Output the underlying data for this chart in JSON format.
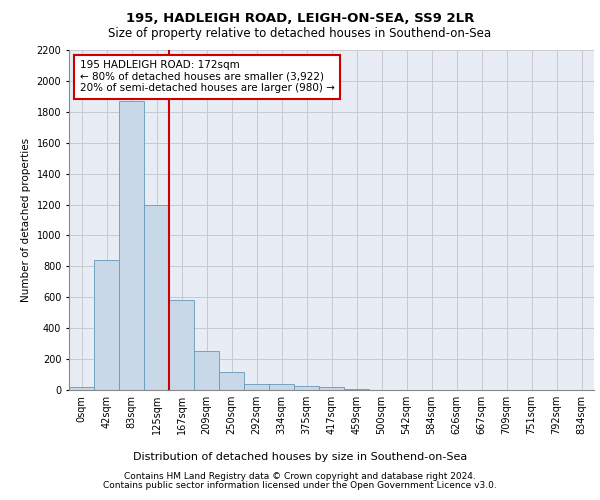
{
  "title1": "195, HADLEIGH ROAD, LEIGH-ON-SEA, SS9 2LR",
  "title2": "Size of property relative to detached houses in Southend-on-Sea",
  "xlabel": "Distribution of detached houses by size in Southend-on-Sea",
  "ylabel": "Number of detached properties",
  "footer1": "Contains HM Land Registry data © Crown copyright and database right 2024.",
  "footer2": "Contains public sector information licensed under the Open Government Licence v3.0.",
  "annotation_line1": "195 HADLEIGH ROAD: 172sqm",
  "annotation_line2": "← 80% of detached houses are smaller (3,922)",
  "annotation_line3": "20% of semi-detached houses are larger (980) →",
  "bar_color": "#c8d8e8",
  "bar_edge_color": "#6699bb",
  "vline_color": "#cc0000",
  "annotation_box_color": "#cc0000",
  "categories": [
    "0sqm",
    "42sqm",
    "83sqm",
    "125sqm",
    "167sqm",
    "209sqm",
    "250sqm",
    "292sqm",
    "334sqm",
    "375sqm",
    "417sqm",
    "459sqm",
    "500sqm",
    "542sqm",
    "584sqm",
    "626sqm",
    "667sqm",
    "709sqm",
    "751sqm",
    "792sqm",
    "834sqm"
  ],
  "values": [
    20,
    840,
    1870,
    1200,
    580,
    255,
    115,
    40,
    38,
    25,
    18,
    8,
    3,
    2,
    1,
    0,
    0,
    0,
    0,
    0,
    0
  ],
  "vline_x": 3.5,
  "ylim": [
    0,
    2200
  ],
  "yticks": [
    0,
    200,
    400,
    600,
    800,
    1000,
    1200,
    1400,
    1600,
    1800,
    2000,
    2200
  ],
  "grid_color": "#c8c8d0",
  "bg_color": "#e8ecf4",
  "fig_width": 6.0,
  "fig_height": 5.0,
  "title1_fontsize": 9.5,
  "title2_fontsize": 8.5,
  "ylabel_fontsize": 7.5,
  "xlabel_fontsize": 8.0,
  "tick_fontsize": 7.0,
  "annot_fontsize": 7.5,
  "footer_fontsize": 6.5
}
